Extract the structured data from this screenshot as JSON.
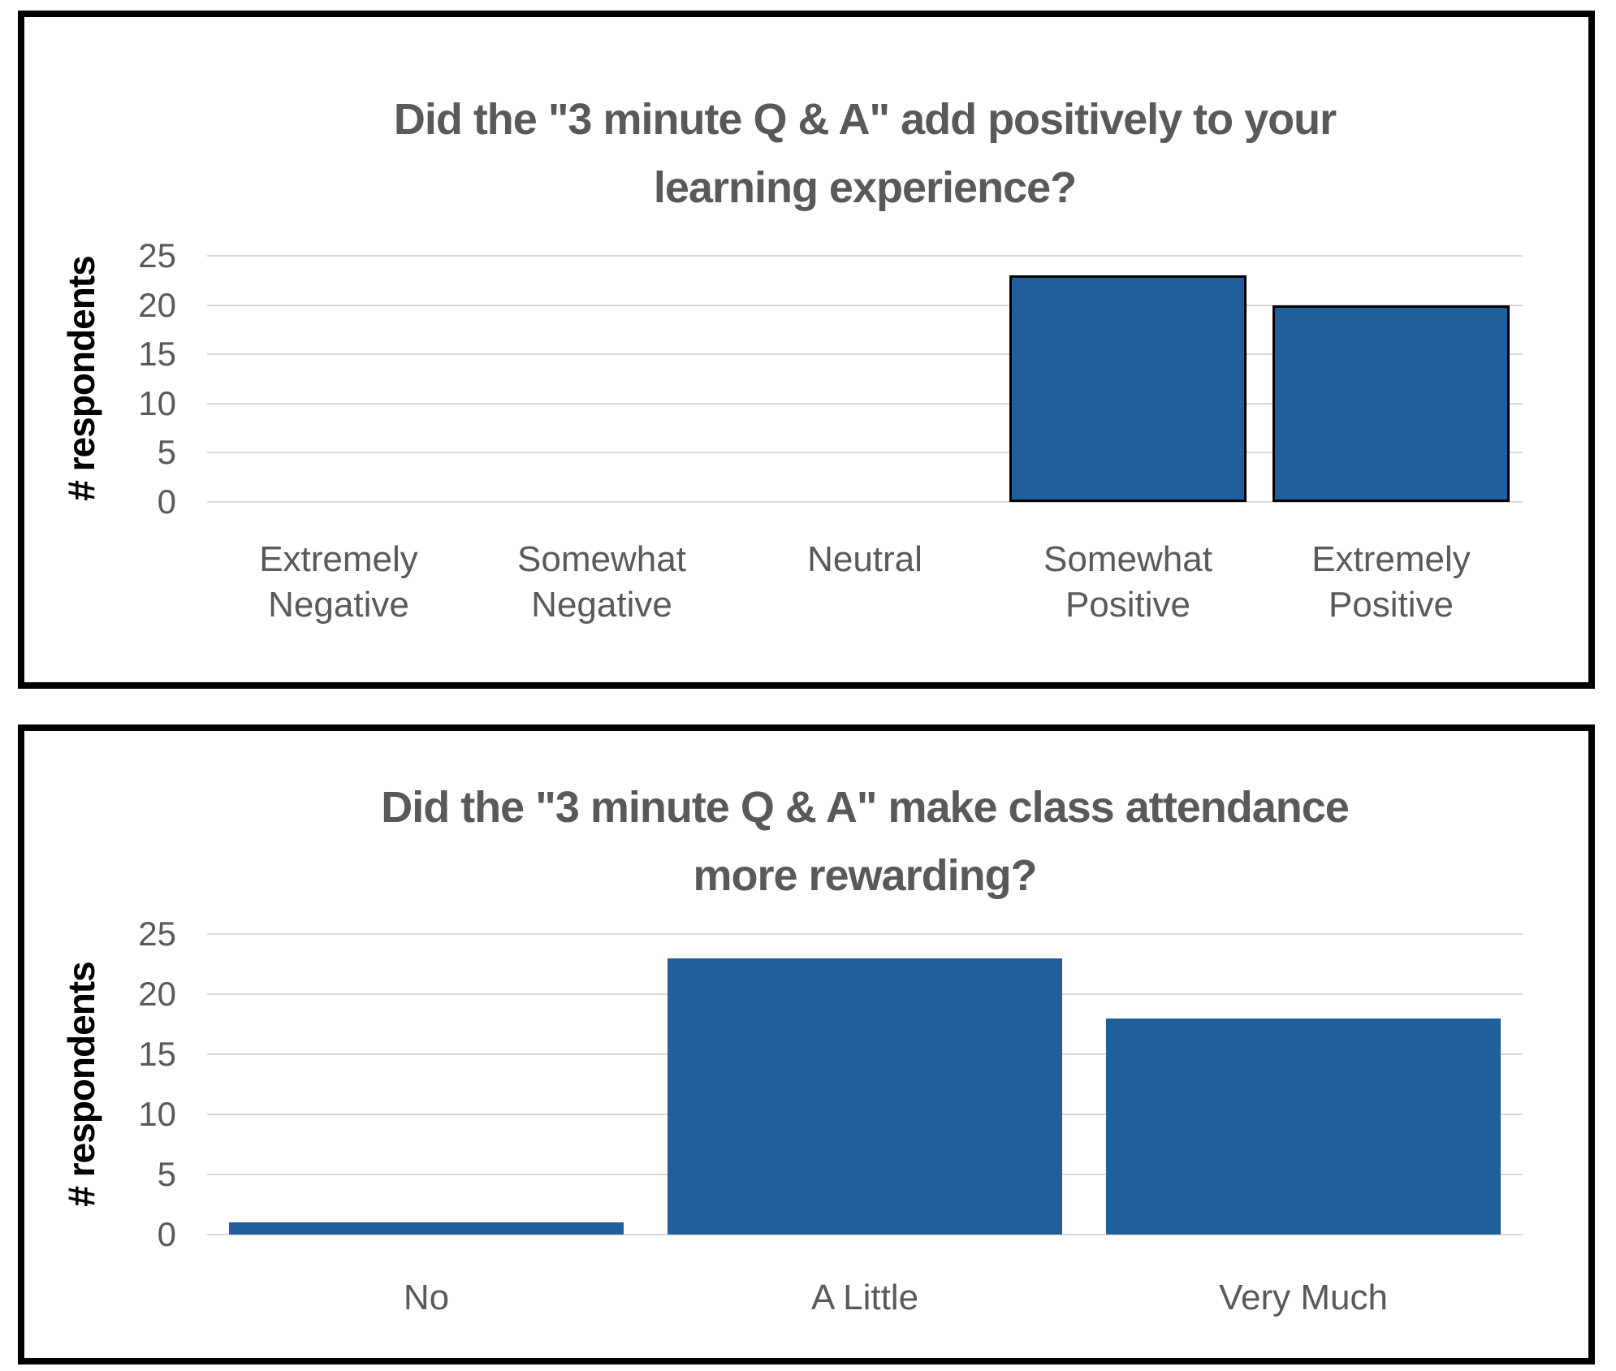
{
  "page_background": "#ffffff",
  "colors": {
    "bar_blue": "#215E9C",
    "bar_outline_black": "#000000",
    "title_gray": "#595959",
    "axis_text_gray": "#595959",
    "y_axis_label_black": "#000000",
    "gridline_gray": "#D9D9D9",
    "figure_border_black": "#000000"
  },
  "chart_data": [
    {
      "type": "bar",
      "title": "Did the \"3 minute Q & A\" add positively to your learning experience?",
      "title_lines": [
        "Did the \"3 minute Q & A\" add positively to your",
        "learning experience?"
      ],
      "ylabel": "# respondents",
      "xlabel": "",
      "categories": [
        "Extremely\nNegative",
        "Somewhat\nNegative",
        "Neutral",
        "Somewhat\nPositive",
        "Extremely\nPositive"
      ],
      "values": [
        0,
        0,
        0,
        23,
        20
      ],
      "ylim": [
        0,
        25
      ],
      "yticks": [
        25,
        20,
        15,
        10,
        5,
        0
      ],
      "grid": true,
      "legend": false,
      "bar_color": "#215E9C",
      "bar_outline": "#000000"
    },
    {
      "type": "bar",
      "title": "Did the \"3 minute Q & A\" make class attendance more rewarding?",
      "title_lines": [
        "Did the \"3 minute Q & A\" make class attendance",
        "more rewarding?"
      ],
      "ylabel": "# respondents",
      "xlabel": "",
      "categories": [
        "No",
        "A Little",
        "Very Much"
      ],
      "values": [
        1,
        23,
        18
      ],
      "ylim": [
        0,
        25
      ],
      "yticks": [
        25,
        20,
        15,
        10,
        5,
        0
      ],
      "grid": true,
      "legend": false,
      "bar_color": "#215E9C",
      "bar_outline": null
    }
  ]
}
